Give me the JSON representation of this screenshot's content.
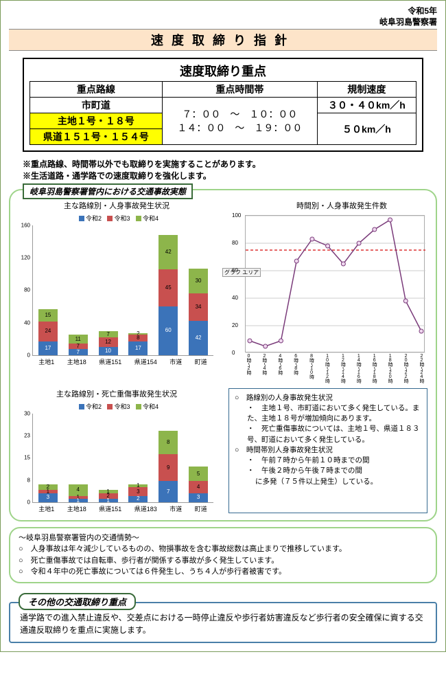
{
  "meta": {
    "era": "令和5年",
    "office": "岐阜羽島警察署"
  },
  "title": "速度取締り指針",
  "priority": {
    "heading": "速度取締り重点",
    "col_headers": [
      "重点路線",
      "重点時間帯",
      "規制速度"
    ],
    "routes": [
      {
        "road": "市町道",
        "time": "７：００　〜　１０：００\n１４：００　〜　１９：００",
        "speed": "３０・４０km／h",
        "highlight": false
      },
      {
        "road": "主地１号・１８号",
        "time": "",
        "speed": "５０km／h",
        "highlight": true
      },
      {
        "road": "県道１５１号・１５４号",
        "time": "",
        "speed": "",
        "highlight": true
      }
    ],
    "notes": [
      "※重点路線、時間帯以外でも取締りを実施することがあります。",
      "※生活道路・通学路での速度取締りを強化します。"
    ]
  },
  "stats_title": "岐阜羽島警察署管内における交通事故実態",
  "colors": {
    "r2": "#3b73b9",
    "r3": "#c8504f",
    "r4": "#8db54b",
    "line": "#7a3b7a",
    "marker_fill": "#efd7ef",
    "ref_line": "#d33",
    "grid": "#cccccc",
    "axis": "#888888"
  },
  "legend": {
    "r2": "令和2",
    "r3": "令和3",
    "r4": "令和4"
  },
  "chart1": {
    "title": "主な路線別・人身事故発生状況",
    "ymax": 160,
    "categories": [
      "主地1",
      "主地18",
      "県道151",
      "県道154",
      "市道",
      "町道"
    ],
    "series": {
      "r2": [
        17,
        7,
        10,
        17,
        60,
        42
      ],
      "r3": [
        24,
        7,
        12,
        8,
        45,
        34
      ],
      "r4": [
        15,
        11,
        7,
        2,
        42,
        30
      ]
    }
  },
  "chart2": {
    "title": "主な路線別・死亡重傷事故発生状況",
    "ymax": 30,
    "categories": [
      "主地1",
      "主地18",
      "県道151",
      "県道183",
      "市道",
      "町道"
    ],
    "series": {
      "r2": [
        3,
        1,
        1,
        2,
        7,
        3
      ],
      "r3": [
        1,
        1,
        2,
        3,
        9,
        4
      ],
      "r4": [
        2,
        4,
        1,
        1,
        8,
        5
      ]
    }
  },
  "line_chart": {
    "title": "時間別・人身事故発生件数",
    "ymax": 100,
    "ystep": 20,
    "ref": 75,
    "label": "グラフ エリア",
    "x_labels": [
      "0時〜2時",
      "2時〜4時",
      "4時〜6時",
      "6時〜8時",
      "8時〜10時",
      "10時〜12時",
      "12時〜14時",
      "14時〜16時",
      "16時〜18時",
      "18時〜20時",
      "20時〜22時",
      "22時〜24時"
    ],
    "values": [
      9,
      5,
      9,
      67,
      83,
      78,
      65,
      80,
      90,
      97,
      38,
      16
    ]
  },
  "bullets": {
    "items": [
      {
        "t": "○　路線別の人身事故発生状況"
      },
      {
        "t": "・　主地１号、市町道において多く発生している。また、主地１８号が増加傾向にあります。",
        "cls": "sub"
      },
      {
        "t": "・　死亡重傷事故については、主地１号、県道１８３号、町道において多く発生している。",
        "cls": "sub"
      },
      {
        "t": "○　時間帯別人身事故発生状況"
      },
      {
        "t": "・　午前７時から午前１０時までの間",
        "cls": "sub"
      },
      {
        "t": "・　午後２時から午後７時までの間",
        "cls": "sub"
      },
      {
        "t": "に多発（７５件以上発生）している。",
        "cls": "indent"
      }
    ]
  },
  "situation": {
    "heading": "〜岐阜羽島警察署管内の交通情勢〜",
    "lines": [
      "○　人身事故は年々減少しているものの、物損事故を含む事故総数は高止まりで推移しています。",
      "○　死亡重傷事故では自転車、歩行者が関係する事故が多く発生しています。",
      "○　令和４年中の死亡事故については６件発生し、うち４人が歩行者被害です。"
    ]
  },
  "other": {
    "heading": "その他の交通取締り重点",
    "body": "通学路での進入禁止違反や、交差点における一時停止違反や歩行者妨害違反など歩行者の安全確保に資する交通違反取締りを重点に実施します。"
  }
}
